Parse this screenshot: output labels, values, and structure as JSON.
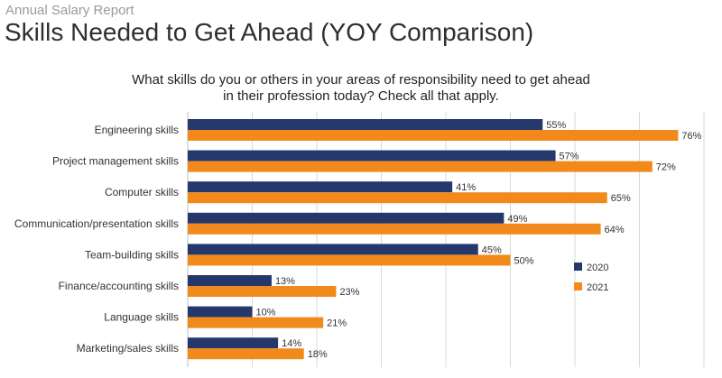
{
  "header": {
    "supertitle": "Annual Salary Report",
    "title": "Skills Needed to Get Ahead (YOY Comparison)"
  },
  "chart_data": {
    "type": "bar",
    "orientation": "horizontal",
    "title": "What skills do you or others in your areas of responsibility need to get ahead in their profession today? Check all that apply.",
    "title_lines": [
      "What skills do you or others in your areas of responsibility need to get ahead",
      "in their profession today? Check all that apply."
    ],
    "categories": [
      "Engineering skills",
      "Project management skills",
      "Computer skills",
      "Communication/presentation skills",
      "Team-building skills",
      "Finance/accounting skills",
      "Language skills",
      "Marketing/sales skills"
    ],
    "series": [
      {
        "name": "2020",
        "values": [
          55,
          57,
          41,
          49,
          45,
          13,
          10,
          14
        ],
        "color": "#24386b"
      },
      {
        "name": "2021",
        "values": [
          76,
          72,
          65,
          64,
          50,
          23,
          21,
          18
        ],
        "color": "#f28a1b"
      }
    ],
    "value_suffix": "%",
    "xlim": [
      0,
      80
    ],
    "grid": true,
    "gridline_color": "#d9d9d9",
    "legend_position": "right"
  }
}
